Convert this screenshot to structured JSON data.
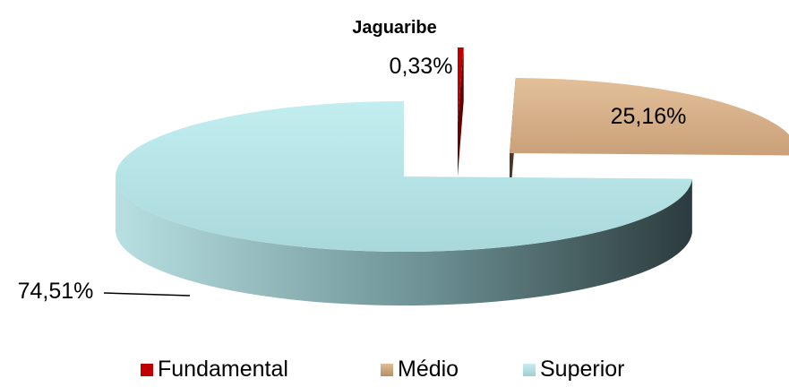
{
  "chart_data": {
    "type": "pie",
    "title": "Jaguaribe",
    "categories": [
      "Fundamental",
      "Médio",
      "Superior"
    ],
    "values": [
      0.33,
      25.16,
      74.51
    ],
    "labels": [
      "0,33%",
      "25,16%",
      "74,51%"
    ],
    "colors": [
      "#c00000",
      "#c8a27a",
      "#b8e4e6"
    ],
    "legend_position": "bottom"
  }
}
